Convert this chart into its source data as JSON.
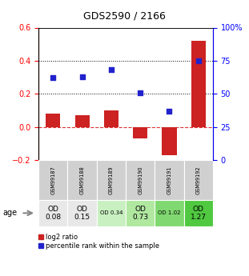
{
  "title": "GDS2590 / 2166",
  "samples": [
    "GSM99187",
    "GSM99188",
    "GSM99189",
    "GSM99190",
    "GSM99191",
    "GSM99192"
  ],
  "log2_ratio": [
    0.08,
    0.07,
    0.1,
    -0.07,
    -0.17,
    0.52
  ],
  "percentile_rank": [
    62,
    63,
    68,
    51,
    37,
    75
  ],
  "ylim_left": [
    -0.2,
    0.6
  ],
  "ylim_right": [
    0,
    100
  ],
  "yticks_left": [
    -0.2,
    0.0,
    0.2,
    0.4,
    0.6
  ],
  "yticks_right": [
    0,
    25,
    50,
    75,
    100
  ],
  "ytick_labels_right": [
    "0",
    "25",
    "50",
    "75",
    "100%"
  ],
  "bar_color": "#cc2222",
  "dot_color": "#2222cc",
  "table_gsm_colors": [
    "#d0d0d0",
    "#d0d0d0",
    "#d0d0d0",
    "#d0d0d0",
    "#d0d0d0",
    "#d0d0d0"
  ],
  "table_od_texts": [
    "OD\n0.08",
    "OD\n0.15",
    "OD 0.34",
    "OD\n0.73",
    "OD 1.02",
    "OD\n1.27"
  ],
  "table_od_colors": [
    "#e8e8e8",
    "#e8e8e8",
    "#c8f0c0",
    "#b0e8a0",
    "#80d870",
    "#50c840"
  ],
  "table_od_large": [
    true,
    true,
    false,
    true,
    false,
    true
  ],
  "age_label": "age",
  "legend_red": "log2 ratio",
  "legend_blue": "percentile rank within the sample",
  "bg": "#ffffff"
}
